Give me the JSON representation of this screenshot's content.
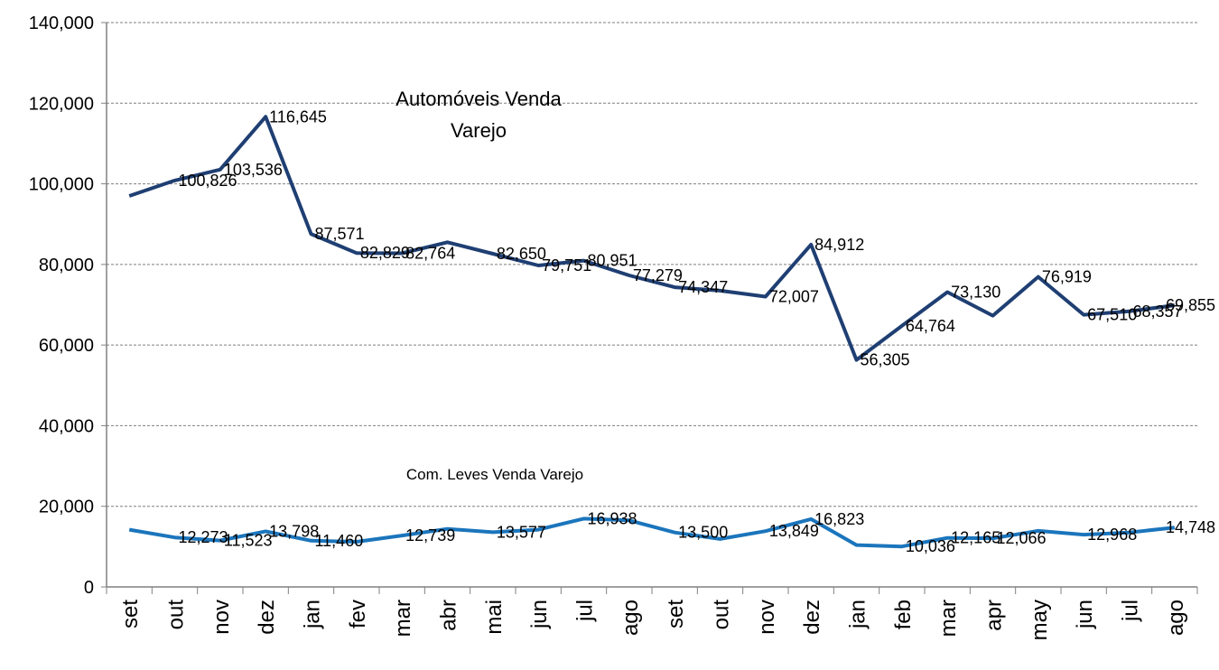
{
  "chart_data": {
    "type": "line",
    "categories": [
      "set",
      "out",
      "nov",
      "dez",
      "jan",
      "fev",
      "mar",
      "abr",
      "mai",
      "jun",
      "jul",
      "ago",
      "set",
      "out",
      "nov",
      "dez",
      "jan",
      "feb",
      "mar",
      "apr",
      "may",
      "jun",
      "jul",
      "ago"
    ],
    "ylim": [
      0,
      140000
    ],
    "yticks": [
      0,
      20000,
      40000,
      60000,
      80000,
      100000,
      120000,
      140000
    ],
    "ytick_labels": [
      "0",
      "20,000",
      "40,000",
      "60,000",
      "80,000",
      "100,000",
      "120,000",
      "140,000"
    ],
    "grid": "horizontal dashed",
    "legend": "none",
    "annotations": {
      "automoveis_line1": "Automóveis Venda",
      "automoveis_line2": "Varejo",
      "com_leves": "Com. Leves Venda Varejo"
    },
    "series": [
      {
        "color": "#1F3F73",
        "values": [
          97000,
          100826,
          103536,
          116645,
          87571,
          82829,
          82764,
          85500,
          82650,
          79751,
          80951,
          77279,
          74347,
          73500,
          72007,
          84912,
          56305,
          64764,
          73130,
          67300,
          76919,
          67510,
          68357,
          69855
        ],
        "data_labels": [
          "",
          "100,826",
          "103,536",
          "116,645",
          "87,571",
          "82,829",
          "82,764",
          "",
          "82,650",
          "79,751",
          "80,951",
          "77,279",
          "74,347",
          "",
          "72,007",
          "84,912",
          "56,305",
          "64,764",
          "73,130",
          "",
          "76,919",
          "67,510",
          "68,357",
          "69,855"
        ]
      },
      {
        "color": "#1B75BC",
        "values": [
          14200,
          12273,
          11523,
          13798,
          11460,
          11200,
          12739,
          14400,
          13577,
          14200,
          16938,
          16500,
          13500,
          11900,
          13849,
          16823,
          10400,
          10036,
          12165,
          12066,
          13900,
          12968,
          13500,
          14748
        ],
        "data_labels": [
          "",
          "12,273",
          "11,523",
          "13,798",
          "11,460",
          "",
          "12,739",
          "",
          "13,577",
          "",
          "16,938",
          "",
          "13,500",
          "",
          "13,849",
          "16,823",
          "",
          "10,036",
          "12,165",
          "12,066",
          "",
          "12,968",
          "",
          "14,748"
        ]
      }
    ]
  }
}
